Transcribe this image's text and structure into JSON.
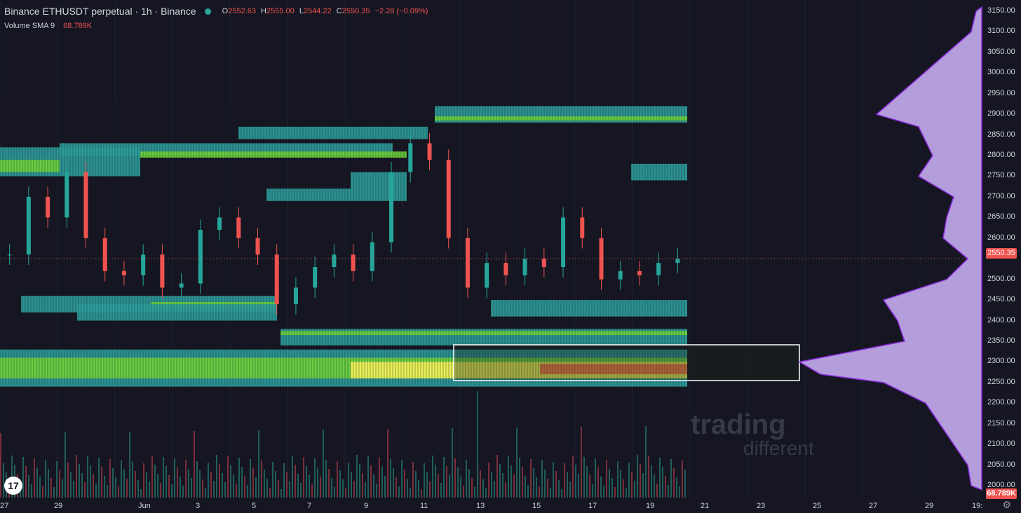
{
  "legend": {
    "symbol": "Binance ETHUSDT perpetual · 1h · Binance",
    "open_label": "O",
    "open": "2552.63",
    "high_label": "H",
    "high": "2555.00",
    "low_label": "L",
    "low": "2544.22",
    "close_label": "C",
    "close": "2550.35",
    "change": "−2.28 (−0.09%)",
    "volume_label": "Volume SMA 9",
    "volume_value": "68.789K"
  },
  "price_axis": {
    "ticks": [
      "3150.00",
      "3100.00",
      "3050.00",
      "3000.00",
      "2950.00",
      "2900.00",
      "2850.00",
      "2800.00",
      "2750.00",
      "2700.00",
      "2650.00",
      "2600.00",
      "2500.00",
      "2450.00",
      "2400.00",
      "2350.00",
      "2300.00",
      "2250.00",
      "2200.00",
      "2150.00",
      "2100.00",
      "2050.00",
      "2000.00"
    ],
    "last_price": "2550.35",
    "volume_tag": "68.789K"
  },
  "time_axis": {
    "ticks": [
      "27",
      "29",
      "Jun",
      "3",
      "5",
      "7",
      "9",
      "11",
      "13",
      "15",
      "17",
      "19",
      "21",
      "23",
      "25",
      "27",
      "29",
      "19:"
    ]
  },
  "watermark": {
    "line1": "trading",
    "line2": "different"
  },
  "colors": {
    "bg": "#151621",
    "up": "#26a69a",
    "down": "#ef5350",
    "heat_teal": "#2e9e9c",
    "heat_green": "#6ed33a",
    "heat_yellow": "#f5f35a",
    "profile": "#b39ddb",
    "profile_edge": "#8e2de2"
  },
  "icons": {
    "logo": "tradingview-logo-icon",
    "settings": "gear-icon"
  }
}
